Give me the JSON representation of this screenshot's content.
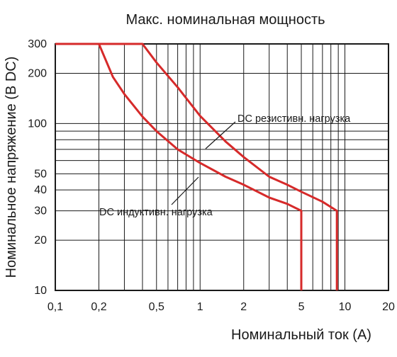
{
  "chart_data": {
    "type": "line",
    "title": "Макс. номинальная мощность",
    "xlabel": "Номинальный ток (А)",
    "ylabel": "Номинальное напряжение (В DC)",
    "xscale": "log",
    "yscale": "log",
    "xlim": [
      0.1,
      20
    ],
    "ylim": [
      10,
      300
    ],
    "grid": true,
    "x_ticks": [
      0.1,
      0.2,
      0.5,
      1,
      2,
      5,
      10,
      20
    ],
    "x_tick_labels": [
      "0,1",
      "0,2",
      "0,5",
      "1",
      "2",
      "5",
      "10",
      "20"
    ],
    "y_ticks": [
      10,
      20,
      30,
      40,
      50,
      100,
      200,
      300
    ],
    "y_tick_labels": [
      "10",
      "20",
      "30",
      "40",
      "50",
      "100",
      "200",
      "300"
    ],
    "colors": {
      "curve": "#d62a2a",
      "grid": "#1a1a1a"
    },
    "series": [
      {
        "name": "DC резистивн. нагрузка",
        "points": [
          [
            0.1,
            300
          ],
          [
            0.4,
            300
          ],
          [
            0.5,
            232
          ],
          [
            0.7,
            165
          ],
          [
            1,
            111
          ],
          [
            1.5,
            78
          ],
          [
            2,
            63
          ],
          [
            3,
            48
          ],
          [
            4,
            43
          ],
          [
            5,
            39
          ],
          [
            7,
            34
          ],
          [
            8.8,
            30
          ],
          [
            8.8,
            10
          ]
        ]
      },
      {
        "name": "DC индуктивн. нагрузка",
        "points": [
          [
            0.1,
            300
          ],
          [
            0.2,
            300
          ],
          [
            0.25,
            190
          ],
          [
            0.3,
            150
          ],
          [
            0.4,
            110
          ],
          [
            0.5,
            90
          ],
          [
            0.7,
            70
          ],
          [
            1,
            58
          ],
          [
            1.5,
            48
          ],
          [
            2,
            43
          ],
          [
            3,
            36
          ],
          [
            4,
            33
          ],
          [
            5,
            30
          ],
          [
            5,
            10
          ]
        ]
      }
    ]
  }
}
